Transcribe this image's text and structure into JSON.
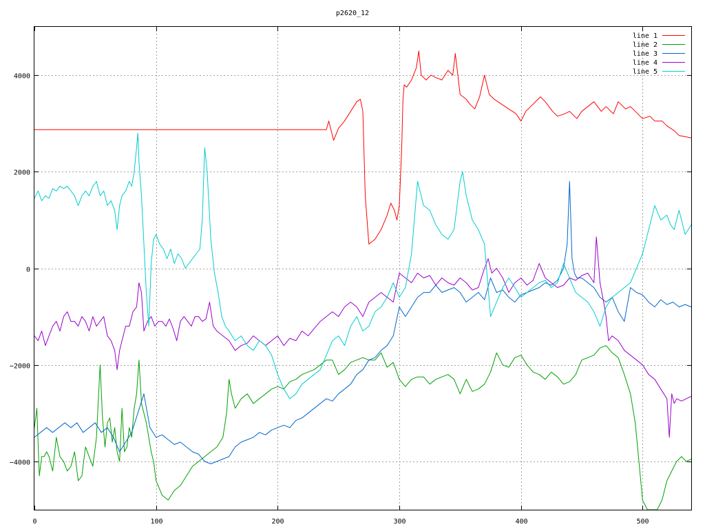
{
  "chart_data": {
    "type": "line",
    "title": "p2620_12",
    "xlabel": "",
    "ylabel": "",
    "xlim": [
      0,
      540
    ],
    "ylim": [
      -5000,
      5000
    ],
    "x_ticks": [
      0,
      100,
      200,
      300,
      400,
      500
    ],
    "y_ticks": [
      -4000,
      -2000,
      0,
      2000,
      4000
    ],
    "grid": true,
    "legend_position": "top-right",
    "series": [
      {
        "name": "line 1",
        "color": "#ff0000",
        "x": [
          0,
          240,
          242,
          244,
          246,
          250,
          255,
          260,
          265,
          268,
          270,
          272,
          275,
          280,
          285,
          290,
          293,
          296,
          298,
          300,
          302,
          303,
          304,
          306,
          310,
          314,
          316,
          318,
          322,
          326,
          330,
          335,
          340,
          344,
          346,
          350,
          355,
          358,
          362,
          366,
          370,
          374,
          378,
          384,
          390,
          396,
          400,
          404,
          410,
          416,
          420,
          426,
          430,
          436,
          440,
          446,
          450,
          455,
          460,
          466,
          470,
          476,
          480,
          486,
          490,
          496,
          500,
          506,
          510,
          516,
          520,
          526,
          530,
          536,
          540
        ],
        "y": [
          2870,
          2870,
          3050,
          2850,
          2650,
          2900,
          3050,
          3250,
          3450,
          3500,
          3250,
          1500,
          500,
          600,
          800,
          1100,
          1350,
          1200,
          1000,
          1300,
          2500,
          3500,
          3800,
          3750,
          3900,
          4150,
          4500,
          4000,
          3900,
          4000,
          3950,
          3900,
          4100,
          4000,
          4450,
          3600,
          3500,
          3400,
          3300,
          3550,
          4000,
          3600,
          3500,
          3400,
          3300,
          3200,
          3050,
          3250,
          3400,
          3550,
          3450,
          3250,
          3150,
          3200,
          3250,
          3100,
          3250,
          3350,
          3450,
          3250,
          3350,
          3200,
          3450,
          3300,
          3350,
          3200,
          3100,
          3150,
          3050,
          3050,
          2950,
          2850,
          2750,
          2720,
          2700
        ]
      },
      {
        "name": "line 2",
        "color": "#00a000",
        "x": [
          0,
          2,
          4,
          6,
          8,
          10,
          12,
          15,
          18,
          21,
          24,
          27,
          30,
          33,
          36,
          39,
          42,
          45,
          48,
          51,
          54,
          56,
          58,
          60,
          62,
          64,
          66,
          68,
          70,
          72,
          74,
          76,
          78,
          80,
          82,
          84,
          86,
          88,
          90,
          92,
          94,
          96,
          98,
          100,
          105,
          110,
          115,
          120,
          125,
          130,
          135,
          140,
          145,
          150,
          155,
          158,
          160,
          162,
          165,
          170,
          175,
          180,
          185,
          190,
          195,
          200,
          205,
          210,
          215,
          220,
          225,
          230,
          235,
          240,
          245,
          250,
          255,
          260,
          265,
          270,
          275,
          280,
          285,
          290,
          295,
          300,
          305,
          310,
          315,
          320,
          325,
          330,
          335,
          340,
          345,
          350,
          355,
          360,
          365,
          370,
          375,
          380,
          385,
          390,
          395,
          400,
          405,
          410,
          415,
          420,
          425,
          430,
          435,
          440,
          445,
          450,
          455,
          460,
          465,
          470,
          475,
          480,
          485,
          490,
          494,
          497,
          500,
          504,
          508,
          512,
          516,
          520,
          524,
          528,
          532,
          536,
          540
        ],
        "y": [
          -3300,
          -2900,
          -4300,
          -3900,
          -3900,
          -3800,
          -3900,
          -4200,
          -3500,
          -3900,
          -4000,
          -4200,
          -4100,
          -3800,
          -4400,
          -4300,
          -3700,
          -3900,
          -4100,
          -3500,
          -2000,
          -3100,
          -3700,
          -3200,
          -3100,
          -3600,
          -3300,
          -3800,
          -4000,
          -2900,
          -3800,
          -3700,
          -3300,
          -3500,
          -2900,
          -2600,
          -1900,
          -2800,
          -3000,
          -3200,
          -3500,
          -3800,
          -4000,
          -4400,
          -4700,
          -4800,
          -4600,
          -4500,
          -4300,
          -4100,
          -4000,
          -3900,
          -3800,
          -3700,
          -3500,
          -3000,
          -2300,
          -2600,
          -2900,
          -2700,
          -2600,
          -2800,
          -2700,
          -2600,
          -2500,
          -2450,
          -2500,
          -2350,
          -2300,
          -2200,
          -2150,
          -2100,
          -2000,
          -1900,
          -1900,
          -2200,
          -2100,
          -1950,
          -1900,
          -1850,
          -1900,
          -1900,
          -1750,
          -2050,
          -1950,
          -2300,
          -2450,
          -2300,
          -2250,
          -2250,
          -2400,
          -2300,
          -2250,
          -2200,
          -2300,
          -2600,
          -2300,
          -2550,
          -2500,
          -2400,
          -2150,
          -1750,
          -2000,
          -2050,
          -1850,
          -1800,
          -2000,
          -2150,
          -2200,
          -2300,
          -2150,
          -2250,
          -2400,
          -2350,
          -2200,
          -1900,
          -1850,
          -1800,
          -1650,
          -1600,
          -1750,
          -1850,
          -2200,
          -2600,
          -3200,
          -4000,
          -4800,
          -5000,
          -5000,
          -5000,
          -4800,
          -4400,
          -4200,
          -4000,
          -3900,
          -4000,
          -3950
        ]
      },
      {
        "name": "line 3",
        "color": "#0066cc",
        "x": [
          0,
          5,
          10,
          15,
          20,
          25,
          30,
          35,
          40,
          45,
          50,
          55,
          60,
          65,
          70,
          75,
          80,
          85,
          90,
          95,
          100,
          105,
          110,
          115,
          120,
          125,
          130,
          135,
          140,
          145,
          150,
          155,
          160,
          165,
          170,
          175,
          180,
          185,
          190,
          195,
          200,
          205,
          210,
          215,
          220,
          225,
          230,
          235,
          240,
          245,
          250,
          255,
          260,
          265,
          270,
          275,
          280,
          285,
          290,
          295,
          300,
          305,
          310,
          315,
          320,
          325,
          330,
          335,
          340,
          345,
          350,
          355,
          360,
          365,
          370,
          375,
          380,
          385,
          390,
          395,
          400,
          405,
          410,
          415,
          420,
          425,
          430,
          435,
          438,
          440,
          442,
          444,
          446,
          450,
          455,
          460,
          465,
          470,
          475,
          480,
          485,
          490,
          495,
          500,
          505,
          510,
          515,
          520,
          525,
          530,
          535,
          540
        ],
        "y": [
          -3500,
          -3400,
          -3300,
          -3400,
          -3300,
          -3200,
          -3300,
          -3200,
          -3400,
          -3300,
          -3200,
          -3400,
          -3300,
          -3500,
          -3800,
          -3600,
          -3400,
          -3000,
          -2600,
          -3300,
          -3500,
          -3450,
          -3550,
          -3650,
          -3600,
          -3700,
          -3800,
          -3850,
          -4000,
          -4050,
          -4000,
          -3950,
          -3900,
          -3700,
          -3600,
          -3550,
          -3500,
          -3400,
          -3450,
          -3350,
          -3300,
          -3250,
          -3300,
          -3150,
          -3100,
          -3000,
          -2900,
          -2800,
          -2700,
          -2750,
          -2600,
          -2500,
          -2400,
          -2200,
          -2100,
          -1900,
          -1850,
          -1700,
          -1600,
          -1400,
          -800,
          -1000,
          -800,
          -600,
          -500,
          -500,
          -350,
          -500,
          -450,
          -400,
          -500,
          -700,
          -600,
          -500,
          -650,
          -200,
          -500,
          -450,
          -600,
          -700,
          -550,
          -500,
          -450,
          -400,
          -300,
          -350,
          -250,
          0,
          500,
          1800,
          200,
          -100,
          -200,
          -200,
          -300,
          -400,
          -600,
          -700,
          -600,
          -900,
          -1100,
          -400,
          -500,
          -550,
          -700,
          -800,
          -650,
          -750,
          -700,
          -800,
          -750,
          -800
        ]
      },
      {
        "name": "line 4",
        "color": "#9900cc",
        "x": [
          0,
          3,
          6,
          9,
          12,
          15,
          18,
          21,
          24,
          27,
          30,
          33,
          36,
          39,
          42,
          45,
          48,
          51,
          54,
          57,
          60,
          63,
          66,
          68,
          70,
          72,
          75,
          78,
          81,
          84,
          86,
          88,
          90,
          93,
          96,
          99,
          102,
          105,
          108,
          111,
          114,
          117,
          120,
          123,
          126,
          129,
          132,
          135,
          138,
          141,
          144,
          147,
          150,
          155,
          160,
          165,
          170,
          175,
          180,
          185,
          190,
          195,
          200,
          205,
          210,
          215,
          220,
          225,
          230,
          235,
          240,
          245,
          250,
          255,
          260,
          265,
          270,
          275,
          280,
          285,
          290,
          295,
          300,
          305,
          310,
          315,
          320,
          325,
          330,
          335,
          340,
          345,
          350,
          355,
          360,
          365,
          370,
          373,
          376,
          380,
          385,
          390,
          395,
          400,
          405,
          410,
          415,
          420,
          425,
          430,
          435,
          440,
          445,
          450,
          455,
          460,
          462,
          465,
          468,
          470,
          472,
          475,
          480,
          485,
          490,
          495,
          500,
          505,
          510,
          515,
          520,
          522,
          524,
          526,
          528,
          532,
          536,
          540
        ],
        "y": [
          -1400,
          -1500,
          -1300,
          -1600,
          -1400,
          -1200,
          -1100,
          -1300,
          -1000,
          -900,
          -1100,
          -1100,
          -1200,
          -1000,
          -1100,
          -1300,
          -1000,
          -1200,
          -1100,
          -1000,
          -1400,
          -1500,
          -1700,
          -2100,
          -1700,
          -1500,
          -1200,
          -1200,
          -900,
          -800,
          -300,
          -500,
          -1300,
          -1100,
          -1000,
          -1200,
          -1100,
          -1100,
          -1200,
          -1050,
          -1250,
          -1500,
          -1100,
          -1000,
          -1100,
          -1200,
          -1000,
          -1000,
          -1100,
          -1050,
          -700,
          -1200,
          -1300,
          -1400,
          -1500,
          -1700,
          -1600,
          -1550,
          -1400,
          -1500,
          -1600,
          -1500,
          -1400,
          -1600,
          -1450,
          -1500,
          -1300,
          -1400,
          -1250,
          -1100,
          -1000,
          -900,
          -1000,
          -800,
          -700,
          -800,
          -1000,
          -700,
          -600,
          -500,
          -600,
          -700,
          -100,
          -200,
          -300,
          -100,
          -200,
          -150,
          -350,
          -200,
          -300,
          -350,
          -200,
          -300,
          -450,
          -400,
          0,
          200,
          -100,
          0,
          -200,
          -500,
          -300,
          -200,
          -350,
          -250,
          100,
          -200,
          -300,
          -400,
          -350,
          -200,
          -250,
          -150,
          -100,
          -300,
          650,
          -300,
          -700,
          -1000,
          -1500,
          -1400,
          -1500,
          -1700,
          -1800,
          -1900,
          -2000,
          -2200,
          -2300,
          -2500,
          -2700,
          -3500,
          -2600,
          -2800,
          -2700,
          -2750,
          -2700,
          -2650
        ]
      },
      {
        "name": "line 5",
        "color": "#00cccc",
        "x": [
          0,
          3,
          6,
          9,
          12,
          15,
          18,
          21,
          24,
          27,
          30,
          33,
          36,
          39,
          42,
          45,
          48,
          51,
          54,
          57,
          60,
          63,
          66,
          68,
          70,
          72,
          75,
          78,
          80,
          82,
          84,
          85,
          86,
          88,
          90,
          92,
          94,
          96,
          98,
          100,
          103,
          106,
          109,
          112,
          115,
          118,
          121,
          124,
          127,
          130,
          133,
          136,
          138,
          140,
          142,
          145,
          148,
          151,
          154,
          157,
          160,
          165,
          170,
          175,
          180,
          185,
          190,
          195,
          200,
          205,
          210,
          215,
          220,
          225,
          230,
          235,
          240,
          245,
          250,
          255,
          260,
          265,
          270,
          275,
          280,
          285,
          290,
          295,
          300,
          305,
          310,
          315,
          320,
          325,
          330,
          335,
          340,
          345,
          350,
          352,
          355,
          360,
          365,
          370,
          375,
          380,
          385,
          390,
          395,
          400,
          405,
          410,
          415,
          420,
          425,
          430,
          435,
          440,
          445,
          450,
          455,
          460,
          465,
          470,
          475,
          480,
          485,
          490,
          495,
          500,
          505,
          510,
          515,
          520,
          523,
          526,
          530,
          535,
          540
        ],
        "y": [
          1450,
          1600,
          1400,
          1500,
          1450,
          1650,
          1600,
          1700,
          1650,
          1700,
          1600,
          1500,
          1300,
          1500,
          1600,
          1500,
          1700,
          1800,
          1500,
          1600,
          1300,
          1400,
          1200,
          800,
          1300,
          1500,
          1600,
          1800,
          1700,
          2000,
          2500,
          2800,
          2200,
          1500,
          500,
          -500,
          -1200,
          100,
          600,
          700,
          500,
          400,
          200,
          400,
          100,
          300,
          200,
          0,
          100,
          200,
          300,
          400,
          1000,
          2500,
          2000,
          600,
          -100,
          -500,
          -1000,
          -1200,
          -1300,
          -1500,
          -1400,
          -1600,
          -1700,
          -1500,
          -1600,
          -1800,
          -2200,
          -2500,
          -2700,
          -2600,
          -2400,
          -2300,
          -2200,
          -2100,
          -1800,
          -1500,
          -1400,
          -1600,
          -1200,
          -1000,
          -1300,
          -1200,
          -900,
          -800,
          -600,
          -300,
          -600,
          -400,
          300,
          1800,
          1300,
          1200,
          900,
          700,
          600,
          800,
          1800,
          2000,
          1500,
          1000,
          800,
          500,
          -1000,
          -700,
          -400,
          -200,
          -400,
          -600,
          -500,
          -400,
          -300,
          -250,
          -400,
          -300,
          100,
          -200,
          -500,
          -600,
          -700,
          -900,
          -1200,
          -800,
          -600,
          -500,
          -400,
          -300,
          0,
          300,
          800,
          1300,
          1000,
          1100,
          900,
          800,
          1200,
          700,
          900
        ]
      }
    ]
  }
}
